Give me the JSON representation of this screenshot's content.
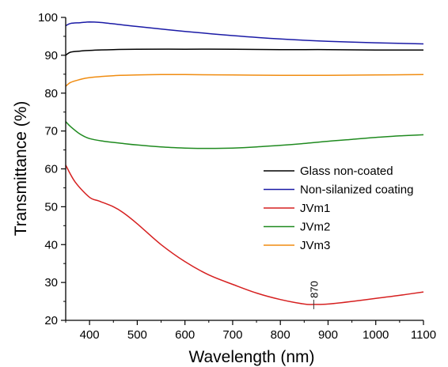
{
  "chart_data": {
    "type": "line",
    "xlabel": "Wavelength (nm)",
    "ylabel": "Transmittance (%)",
    "xlim": [
      350,
      1100
    ],
    "ylim": [
      20,
      100
    ],
    "xticks": [
      400,
      500,
      600,
      700,
      800,
      900,
      1000,
      1100
    ],
    "yticks": [
      20,
      30,
      40,
      50,
      60,
      70,
      80,
      90,
      100
    ],
    "legend_position": "right",
    "series": [
      {
        "name": "Glass non-coated",
        "color": "#000000",
        "x": [
          350,
          360,
          380,
          400,
          450,
          500,
          600,
          700,
          800,
          900,
          1000,
          1100
        ],
        "y": [
          90.0,
          90.8,
          91.1,
          91.3,
          91.5,
          91.6,
          91.6,
          91.6,
          91.5,
          91.5,
          91.4,
          91.4
        ]
      },
      {
        "name": "Non-silanized coating",
        "color": "#1a1aa6",
        "x": [
          350,
          360,
          380,
          400,
          420,
          450,
          500,
          600,
          700,
          800,
          900,
          1000,
          1100
        ],
        "y": [
          97.8,
          98.4,
          98.6,
          98.8,
          98.7,
          98.3,
          97.6,
          96.3,
          95.2,
          94.3,
          93.7,
          93.3,
          93.0
        ]
      },
      {
        "name": "JVm1",
        "color": "#d62020",
        "x": [
          350,
          370,
          400,
          420,
          450,
          470,
          500,
          550,
          600,
          650,
          700,
          750,
          800,
          850,
          870,
          900,
          950,
          1000,
          1050,
          1100
        ],
        "y": [
          61.0,
          56.5,
          52.5,
          51.5,
          50.0,
          48.5,
          45.5,
          40.0,
          35.5,
          32.0,
          29.5,
          27.2,
          25.5,
          24.3,
          24.2,
          24.3,
          25.0,
          25.8,
          26.6,
          27.5
        ]
      },
      {
        "name": "JVm2",
        "color": "#1f8a1f",
        "x": [
          350,
          360,
          380,
          400,
          430,
          470,
          500,
          550,
          600,
          650,
          700,
          750,
          800,
          850,
          900,
          950,
          1000,
          1050,
          1100
        ],
        "y": [
          72.5,
          71.2,
          69.2,
          68.0,
          67.3,
          66.7,
          66.3,
          65.8,
          65.5,
          65.4,
          65.5,
          65.8,
          66.2,
          66.7,
          67.3,
          67.8,
          68.3,
          68.7,
          69.0
        ]
      },
      {
        "name": "JVm3",
        "color": "#f08c10",
        "x": [
          350,
          360,
          380,
          400,
          450,
          500,
          550,
          600,
          700,
          800,
          900,
          1000,
          1100
        ],
        "y": [
          81.8,
          82.8,
          83.6,
          84.1,
          84.6,
          84.8,
          84.9,
          84.9,
          84.8,
          84.7,
          84.7,
          84.8,
          84.9
        ]
      }
    ],
    "annotations": [
      {
        "text": "870",
        "x": 870,
        "y": 24.2
      }
    ]
  }
}
